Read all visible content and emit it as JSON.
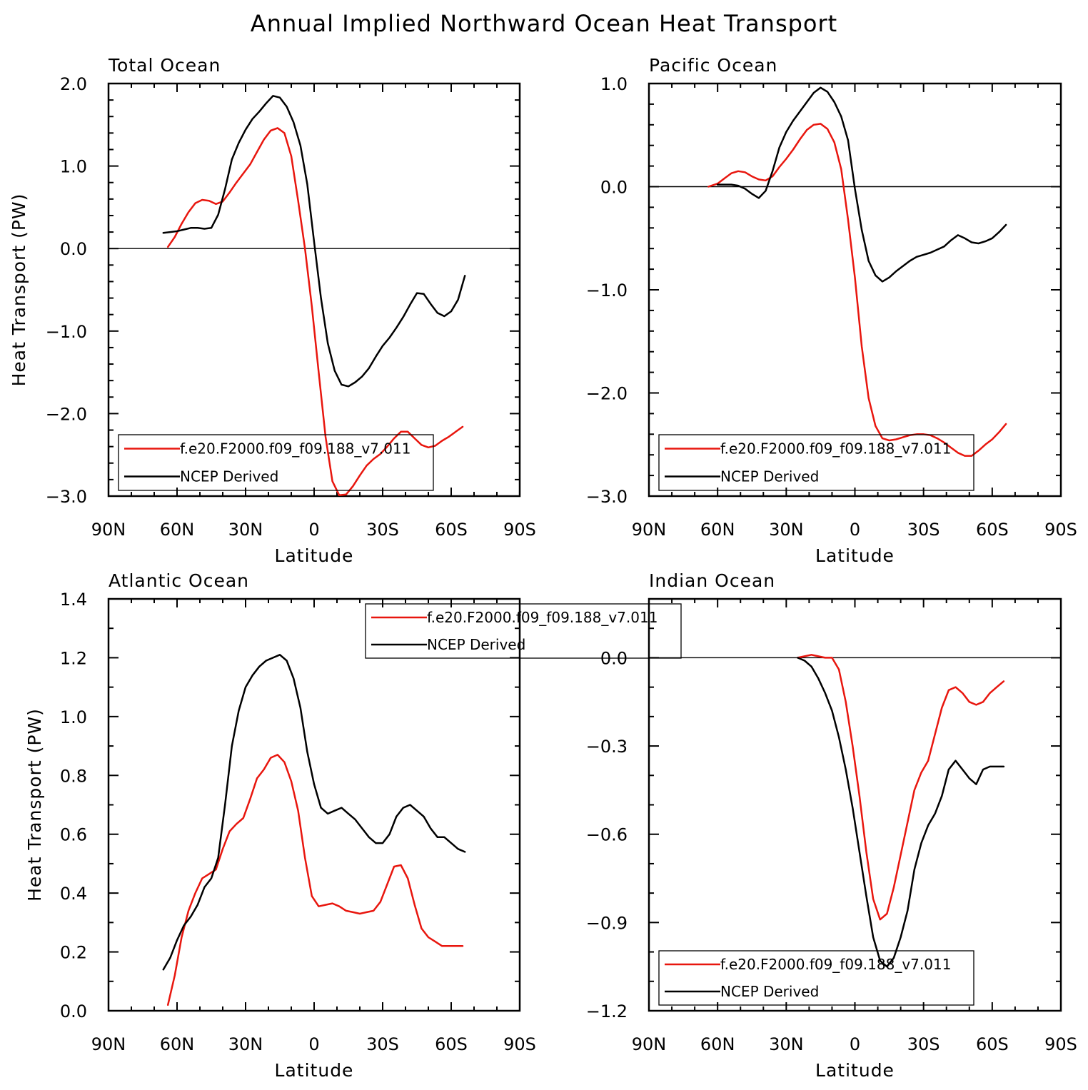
{
  "figure_title": "Annual Implied Northward Ocean Heat Transport",
  "colors": {
    "model": "#e8160e",
    "obs": "#000000",
    "zero_line": "#000000"
  },
  "chart_data": [
    {
      "type": "line",
      "title": "Total Ocean",
      "xlabel": "Latitude",
      "ylabel": "Heat Transport (PW)",
      "xlim": [
        90,
        -90
      ],
      "ylim": [
        -3.0,
        2.0
      ],
      "x_ticks": [
        90,
        60,
        30,
        0,
        -30,
        -60,
        -90
      ],
      "x_tick_labels": [
        "90N",
        "60N",
        "30N",
        "0",
        "30S",
        "60S",
        "90S"
      ],
      "y_ticks": [
        -3.0,
        -2.0,
        -1.0,
        0.0,
        1.0,
        2.0
      ],
      "y_tick_labels": [
        "−3.0",
        "−2.0",
        "−1.0",
        "0.0",
        "1.0",
        "2.0"
      ],
      "zero_line": true,
      "legend": {
        "position": "bottom-left"
      },
      "series": [
        {
          "name": "f.e20.F2000.f09_f09.188_v7.011",
          "color": "#e8160e",
          "x": [
            64,
            61,
            58,
            55,
            52,
            49,
            46,
            43,
            40,
            37,
            34,
            31,
            28,
            25,
            22,
            19,
            16,
            13,
            10,
            7,
            4,
            1,
            -2,
            -5,
            -8,
            -11,
            -14,
            -17,
            -20,
            -23,
            -26,
            -29,
            -32,
            -35,
            -38,
            -41,
            -44,
            -47,
            -50,
            -53,
            -56,
            -59,
            -62,
            -65
          ],
          "y": [
            0.02,
            0.14,
            0.3,
            0.44,
            0.55,
            0.59,
            0.58,
            0.54,
            0.57,
            0.68,
            0.8,
            0.91,
            1.02,
            1.17,
            1.32,
            1.43,
            1.46,
            1.4,
            1.12,
            0.58,
            0.0,
            -0.7,
            -1.5,
            -2.28,
            -2.82,
            -2.99,
            -2.98,
            -2.88,
            -2.75,
            -2.63,
            -2.55,
            -2.49,
            -2.4,
            -2.3,
            -2.22,
            -2.22,
            -2.3,
            -2.38,
            -2.41,
            -2.39,
            -2.33,
            -2.28,
            -2.22,
            -2.16
          ]
        },
        {
          "name": "NCEP Derived",
          "color": "#000000",
          "x": [
            66,
            63,
            60,
            57,
            54,
            51,
            48,
            45,
            42,
            39,
            36,
            33,
            30,
            27,
            24,
            21,
            18,
            15,
            12,
            9,
            6,
            3,
            0,
            -3,
            -6,
            -9,
            -12,
            -15,
            -18,
            -21,
            -24,
            -27,
            -30,
            -33,
            -36,
            -39,
            -42,
            -45,
            -48,
            -51,
            -54,
            -57,
            -60,
            -63,
            -66
          ],
          "y": [
            0.19,
            0.2,
            0.21,
            0.23,
            0.25,
            0.25,
            0.24,
            0.25,
            0.41,
            0.72,
            1.08,
            1.28,
            1.44,
            1.57,
            1.66,
            1.76,
            1.85,
            1.83,
            1.72,
            1.53,
            1.25,
            0.78,
            0.08,
            -0.6,
            -1.15,
            -1.48,
            -1.65,
            -1.67,
            -1.62,
            -1.55,
            -1.45,
            -1.31,
            -1.18,
            -1.08,
            -0.96,
            -0.83,
            -0.68,
            -0.54,
            -0.55,
            -0.67,
            -0.78,
            -0.82,
            -0.76,
            -0.62,
            -0.33
          ]
        }
      ]
    },
    {
      "type": "line",
      "title": "Pacific Ocean",
      "xlabel": "Latitude",
      "ylabel": "",
      "xlim": [
        90,
        -90
      ],
      "ylim": [
        -3.0,
        1.0
      ],
      "x_ticks": [
        90,
        60,
        30,
        0,
        -30,
        -60,
        -90
      ],
      "x_tick_labels": [
        "90N",
        "60N",
        "30N",
        "0",
        "30S",
        "60S",
        "90S"
      ],
      "y_ticks": [
        -3.0,
        -2.0,
        -1.0,
        0.0,
        1.0
      ],
      "y_tick_labels": [
        "−3.0",
        "−2.0",
        "−1.0",
        "0.0",
        "1.0"
      ],
      "zero_line": true,
      "legend": {
        "position": "bottom-left"
      },
      "series": [
        {
          "name": "f.e20.F2000.f09_f09.188_v7.011",
          "color": "#e8160e",
          "x": [
            64,
            60,
            57,
            54,
            51,
            48,
            45,
            42,
            39,
            36,
            33,
            30,
            27,
            24,
            21,
            18,
            15,
            12,
            9,
            6,
            3,
            0,
            -3,
            -6,
            -9,
            -12,
            -15,
            -18,
            -21,
            -24,
            -27,
            -30,
            -33,
            -36,
            -39,
            -42,
            -45,
            -48,
            -51,
            -54,
            -57,
            -60,
            -63,
            -66
          ],
          "y": [
            0.0,
            0.03,
            0.08,
            0.13,
            0.15,
            0.14,
            0.1,
            0.07,
            0.06,
            0.1,
            0.19,
            0.27,
            0.36,
            0.46,
            0.55,
            0.6,
            0.61,
            0.56,
            0.43,
            0.17,
            -0.32,
            -0.88,
            -1.55,
            -2.05,
            -2.32,
            -2.44,
            -2.46,
            -2.45,
            -2.43,
            -2.41,
            -2.4,
            -2.4,
            -2.41,
            -2.44,
            -2.48,
            -2.53,
            -2.58,
            -2.61,
            -2.61,
            -2.56,
            -2.5,
            -2.45,
            -2.38,
            -2.3
          ]
        },
        {
          "name": "NCEP Derived",
          "color": "#000000",
          "x": [
            60,
            57,
            54,
            51,
            48,
            45,
            42,
            39,
            36,
            33,
            30,
            27,
            24,
            21,
            18,
            15,
            12,
            9,
            6,
            3,
            0,
            -3,
            -6,
            -9,
            -12,
            -15,
            -18,
            -21,
            -24,
            -27,
            -30,
            -33,
            -36,
            -39,
            -42,
            -45,
            -48,
            -51,
            -54,
            -57,
            -60,
            -63,
            -66
          ],
          "y": [
            0.02,
            0.02,
            0.02,
            0.01,
            -0.02,
            -0.07,
            -0.11,
            -0.04,
            0.15,
            0.38,
            0.53,
            0.64,
            0.73,
            0.82,
            0.91,
            0.96,
            0.92,
            0.82,
            0.68,
            0.45,
            -0.02,
            -0.42,
            -0.72,
            -0.86,
            -0.92,
            -0.88,
            -0.82,
            -0.77,
            -0.72,
            -0.68,
            -0.66,
            -0.64,
            -0.61,
            -0.58,
            -0.52,
            -0.47,
            -0.5,
            -0.54,
            -0.55,
            -0.53,
            -0.5,
            -0.44,
            -0.37
          ]
        }
      ]
    },
    {
      "type": "line",
      "title": "Atlantic Ocean",
      "xlabel": "Latitude",
      "ylabel": "Heat Transport (PW)",
      "xlim": [
        90,
        -90
      ],
      "ylim": [
        0.0,
        1.4
      ],
      "x_ticks": [
        90,
        60,
        30,
        0,
        -30,
        -60,
        -90
      ],
      "x_tick_labels": [
        "90N",
        "60N",
        "30N",
        "0",
        "30S",
        "60S",
        "90S"
      ],
      "y_ticks": [
        0.0,
        0.2,
        0.4,
        0.6,
        0.8,
        1.0,
        1.2,
        1.4
      ],
      "y_tick_labels": [
        "0.0",
        "0.2",
        "0.4",
        "0.6",
        "0.8",
        "1.0",
        "1.2",
        "1.4"
      ],
      "zero_line": false,
      "legend": {
        "position": "top-right"
      },
      "series": [
        {
          "name": "f.e20.F2000.f09_f09.188_v7.011",
          "color": "#e8160e",
          "x": [
            64,
            61,
            58,
            55,
            52,
            49,
            46,
            43,
            40,
            37,
            34,
            31,
            28,
            25,
            22,
            19,
            16,
            13,
            10,
            7,
            4,
            1,
            -2,
            -5,
            -8,
            -11,
            -14,
            -17,
            -20,
            -23,
            -26,
            -29,
            -32,
            -35,
            -38,
            -41,
            -44,
            -47,
            -50,
            -53,
            -56,
            -59,
            -62,
            -65
          ],
          "y": [
            0.02,
            0.12,
            0.25,
            0.34,
            0.4,
            0.45,
            0.465,
            0.48,
            0.55,
            0.61,
            0.635,
            0.655,
            0.72,
            0.79,
            0.82,
            0.86,
            0.87,
            0.845,
            0.78,
            0.68,
            0.52,
            0.39,
            0.355,
            0.36,
            0.365,
            0.355,
            0.34,
            0.335,
            0.33,
            0.335,
            0.34,
            0.37,
            0.43,
            0.49,
            0.495,
            0.45,
            0.36,
            0.28,
            0.25,
            0.235,
            0.22,
            0.22,
            0.22,
            0.22
          ]
        },
        {
          "name": "NCEP Derived",
          "color": "#000000",
          "x": [
            66,
            63,
            60,
            57,
            54,
            51,
            48,
            45,
            42,
            39,
            36,
            33,
            30,
            27,
            24,
            21,
            18,
            15,
            12,
            9,
            6,
            3,
            0,
            -3,
            -6,
            -9,
            -12,
            -15,
            -18,
            -21,
            -24,
            -27,
            -30,
            -33,
            -36,
            -39,
            -42,
            -45,
            -48,
            -51,
            -54,
            -57,
            -60,
            -63,
            -66
          ],
          "y": [
            0.14,
            0.18,
            0.24,
            0.29,
            0.32,
            0.36,
            0.42,
            0.45,
            0.52,
            0.7,
            0.9,
            1.02,
            1.1,
            1.14,
            1.17,
            1.19,
            1.2,
            1.21,
            1.19,
            1.13,
            1.03,
            0.88,
            0.77,
            0.69,
            0.67,
            0.68,
            0.69,
            0.67,
            0.65,
            0.62,
            0.59,
            0.57,
            0.57,
            0.6,
            0.66,
            0.69,
            0.7,
            0.68,
            0.66,
            0.62,
            0.59,
            0.59,
            0.57,
            0.55,
            0.54
          ]
        }
      ]
    },
    {
      "type": "line",
      "title": "Indian Ocean",
      "xlabel": "Latitude",
      "ylabel": "",
      "xlim": [
        90,
        -90
      ],
      "ylim": [
        -1.2,
        0.2
      ],
      "x_ticks": [
        90,
        60,
        30,
        0,
        -30,
        -60,
        -90
      ],
      "x_tick_labels": [
        "90N",
        "60N",
        "30N",
        "0",
        "30S",
        "60S",
        "90S"
      ],
      "y_ticks": [
        -1.2,
        -0.9,
        -0.6,
        -0.3,
        0.0
      ],
      "y_tick_labels": [
        "−1.2",
        "−0.9",
        "−0.6",
        "−0.3",
        "0.0"
      ],
      "zero_line": true,
      "legend": {
        "position": "bottom-left"
      },
      "series": [
        {
          "name": "f.e20.F2000.f09_f09.188_v7.011",
          "color": "#e8160e",
          "x": [
            25,
            22,
            19,
            16,
            13,
            10,
            7,
            4,
            1,
            -2,
            -5,
            -8,
            -11,
            -14,
            -17,
            -20,
            -23,
            -26,
            -29,
            -32,
            -35,
            -38,
            -41,
            -44,
            -47,
            -50,
            -53,
            -56,
            -59,
            -62,
            -65
          ],
          "y": [
            0.0,
            0.005,
            0.01,
            0.005,
            0.0,
            0.0,
            -0.04,
            -0.15,
            -0.3,
            -0.47,
            -0.66,
            -0.82,
            -0.89,
            -0.87,
            -0.78,
            -0.67,
            -0.56,
            -0.45,
            -0.39,
            -0.35,
            -0.26,
            -0.17,
            -0.11,
            -0.1,
            -0.12,
            -0.15,
            -0.16,
            -0.15,
            -0.12,
            -0.1,
            -0.08
          ]
        },
        {
          "name": "NCEP Derived",
          "color": "#000000",
          "x": [
            25,
            22,
            19,
            16,
            13,
            10,
            7,
            4,
            1,
            -2,
            -5,
            -8,
            -11,
            -14,
            -17,
            -20,
            -23,
            -26,
            -29,
            -32,
            -35,
            -38,
            -41,
            -44,
            -47,
            -50,
            -53,
            -56,
            -59,
            -62,
            -65
          ],
          "y": [
            0.0,
            -0.01,
            -0.03,
            -0.07,
            -0.12,
            -0.18,
            -0.27,
            -0.38,
            -0.51,
            -0.66,
            -0.81,
            -0.95,
            -1.03,
            -1.05,
            -1.02,
            -0.95,
            -0.86,
            -0.72,
            -0.63,
            -0.57,
            -0.53,
            -0.47,
            -0.38,
            -0.35,
            -0.38,
            -0.41,
            -0.43,
            -0.38,
            -0.37,
            -0.37,
            -0.37
          ]
        }
      ]
    }
  ]
}
